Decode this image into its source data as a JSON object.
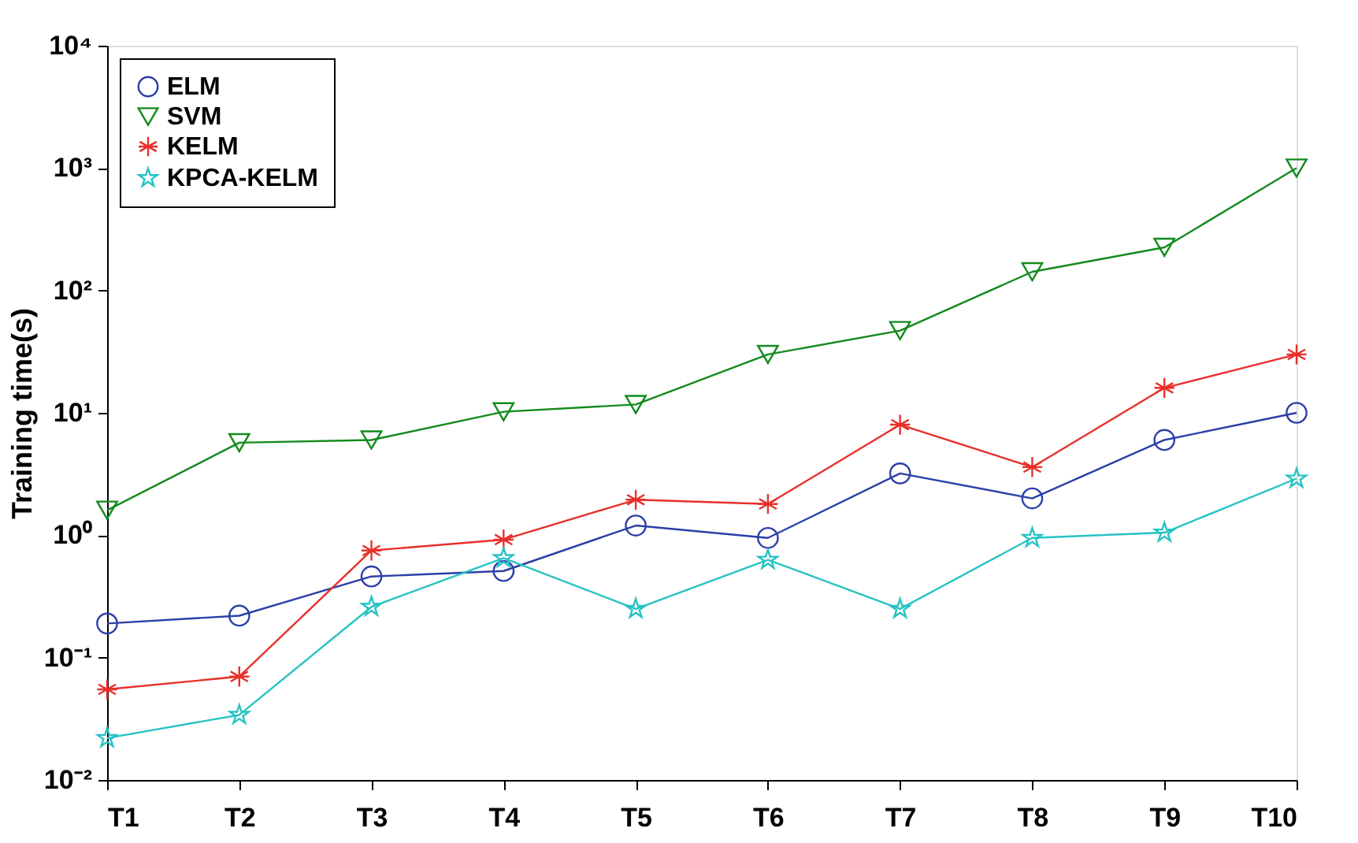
{
  "chart_data": {
    "type": "line",
    "ylabel": "Training time(s)",
    "categories": [
      "T1",
      "T2",
      "T3",
      "T4",
      "T5",
      "T6",
      "T7",
      "T8",
      "T9",
      "T10"
    ],
    "series": [
      {
        "name": "ELM",
        "color": "#2b3fa8",
        "marker": "circle",
        "values": [
          0.19,
          0.22,
          0.46,
          0.51,
          1.2,
          0.95,
          3.2,
          2.0,
          6.0,
          10
        ]
      },
      {
        "name": "SVM",
        "color": "#138a1c",
        "marker": "triangle",
        "values": [
          1.6,
          5.7,
          6.0,
          10.2,
          11.7,
          30,
          47,
          142,
          225,
          1000
        ]
      },
      {
        "name": "KELM",
        "color": "#e8302a",
        "marker": "cross",
        "values": [
          0.055,
          0.07,
          0.75,
          0.92,
          1.95,
          1.8,
          8,
          3.6,
          16,
          30
        ]
      },
      {
        "name": "KPCA-KELM",
        "color": "#27c2c4",
        "marker": "star",
        "values": [
          0.022,
          0.034,
          0.26,
          0.65,
          0.25,
          0.63,
          0.25,
          0.95,
          1.05,
          2.9
        ]
      }
    ],
    "log": true,
    "ylim": [
      0.01,
      10000
    ],
    "yticks": [
      {
        "value": 0.01,
        "label": "10⁻²"
      },
      {
        "value": 0.1,
        "label": "10⁻¹"
      },
      {
        "value": 1,
        "label": "10⁰"
      },
      {
        "value": 10,
        "label": "10¹"
      },
      {
        "value": 100,
        "label": "10²"
      },
      {
        "value": 1000,
        "label": "10³"
      },
      {
        "value": 10000,
        "label": "10⁴"
      }
    ],
    "grid": false,
    "legend": "top left",
    "line_style": "solid"
  }
}
